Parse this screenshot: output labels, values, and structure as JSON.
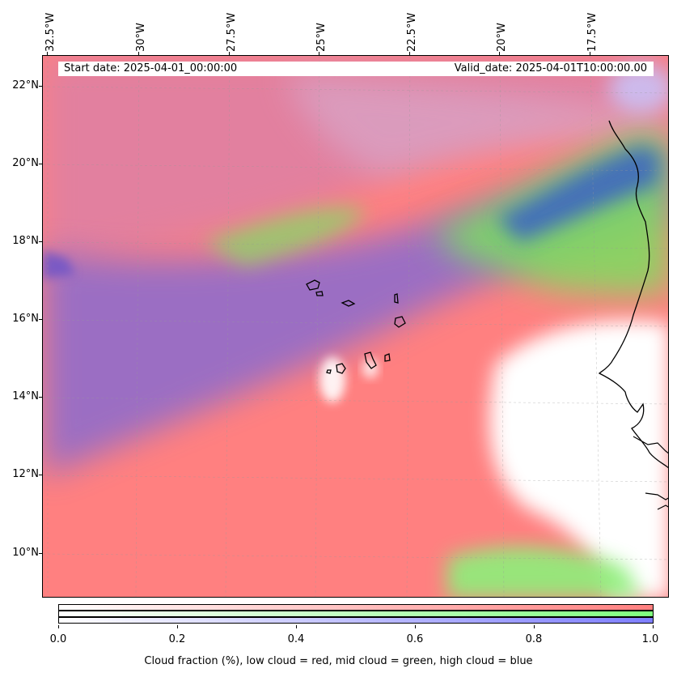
{
  "map": {
    "longitude_labels": [
      "32.5°W",
      "30°W",
      "27.5°W",
      "25°W",
      "22.5°W",
      "20°W",
      "17.5°W"
    ],
    "latitude_labels": [
      "22°N",
      "20°N",
      "18°N",
      "16°N",
      "14°N",
      "12°N",
      "10°N"
    ],
    "start_date": "Start date: 2025-04-01_00:00:00",
    "valid_date": "Valid_date: 2025-04-01T10:00:00.00",
    "colors": {
      "low_cloud": "#ff7f7f",
      "mid_cloud": "#7fff7f",
      "high_cloud": "#7f7fff",
      "coastline": "#000000"
    }
  },
  "colorbar": {
    "ticks": [
      "0.0",
      "0.2",
      "0.4",
      "0.6",
      "0.8",
      "1.0"
    ],
    "caption": "Cloud fraction (%), low cloud = red, mid cloud = green, high cloud = blue"
  }
}
